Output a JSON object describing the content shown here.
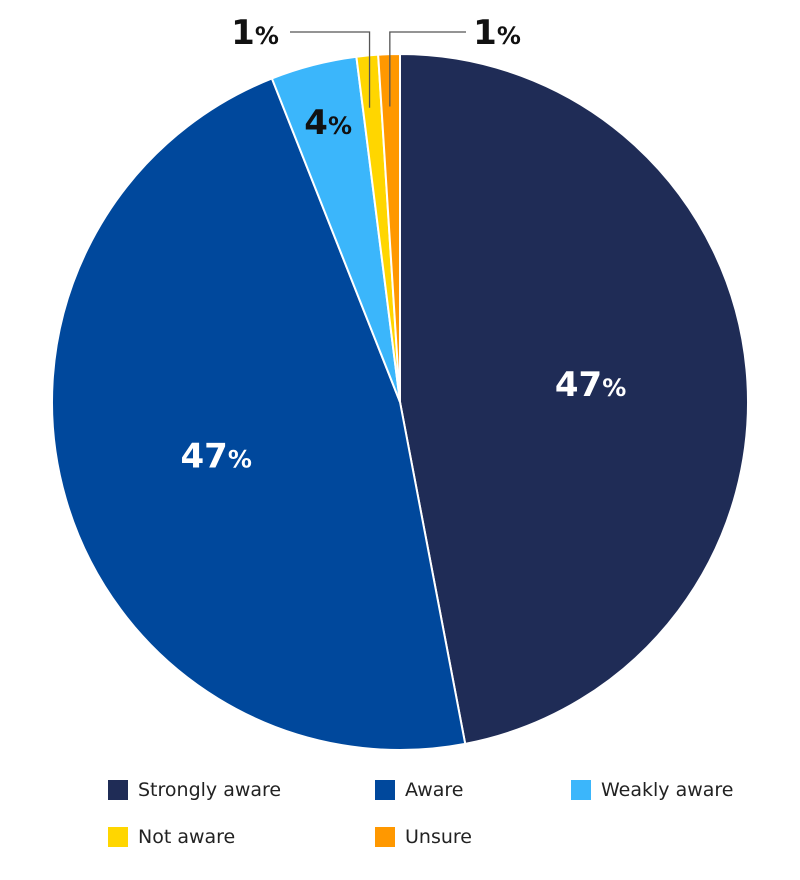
{
  "chart_data": {
    "type": "pie",
    "title": "",
    "start_angle_deg": 0,
    "direction": "clockwise",
    "unit_suffix": "%",
    "legend_position": "bottom",
    "slices": [
      {
        "label": "Strongly aware",
        "value": 47,
        "display": "47",
        "color": "#1f2c56",
        "label_color": "#ffffff"
      },
      {
        "label": "Aware",
        "value": 47,
        "display": "47",
        "color": "#00489c",
        "label_color": "#ffffff"
      },
      {
        "label": "Weakly aware",
        "value": 4,
        "display": "4",
        "color": "#3bb6fb",
        "label_color": "#111111"
      },
      {
        "label": "Not aware",
        "value": 1,
        "display": "1",
        "color": "#ffd600",
        "label_color": "#111111"
      },
      {
        "label": "Unsure",
        "value": 1,
        "display": "1",
        "color": "#ff9800",
        "label_color": "#111111"
      }
    ]
  }
}
